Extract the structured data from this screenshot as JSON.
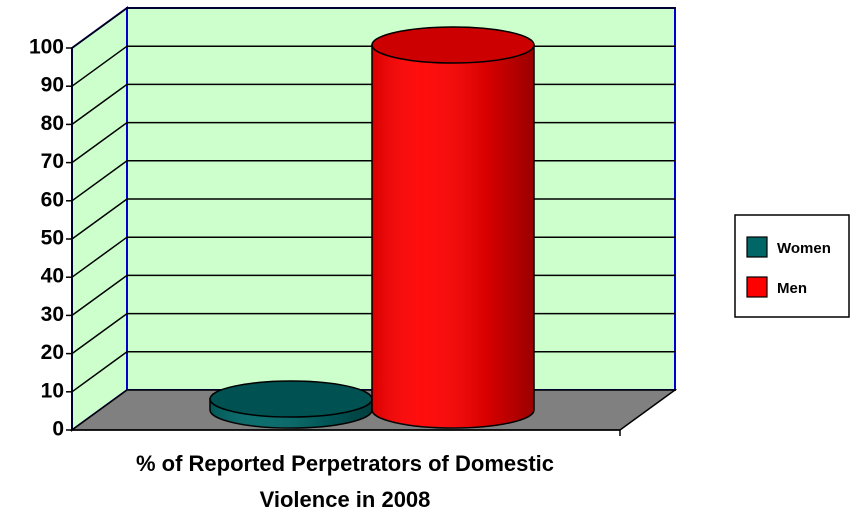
{
  "chart_data": {
    "type": "cylinder",
    "xlabel": "% of Reported Perpetrators of Domestic Violence in 2008",
    "categories": [
      null
    ],
    "series": [
      {
        "name": "Women",
        "color": "#006666",
        "values": [
          3
        ]
      },
      {
        "name": "Men",
        "color": "#ff0000",
        "values": [
          100
        ]
      }
    ],
    "ylim": [
      0,
      100
    ],
    "yticks": [
      0,
      10,
      20,
      30,
      40,
      50,
      60,
      70,
      80,
      90,
      100
    ],
    "grid": true,
    "legend": "right"
  }
}
